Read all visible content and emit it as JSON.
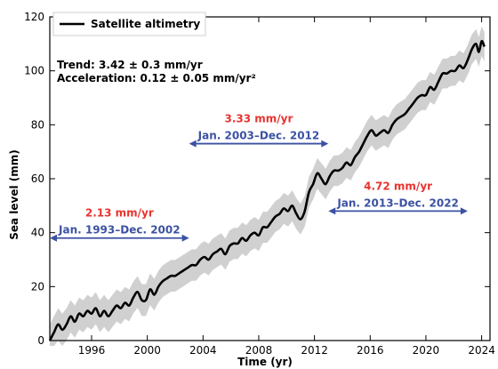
{
  "chart_data": {
    "type": "line",
    "xlabel": "Time (yr)",
    "ylabel": "Sea level (mm)",
    "xlim": [
      1993,
      2024.6
    ],
    "ylim": [
      0,
      120
    ],
    "xticks": [
      1996,
      2000,
      2004,
      2008,
      2012,
      2016,
      2020,
      2024
    ],
    "yticks": [
      0,
      20,
      40,
      60,
      80,
      100,
      120
    ],
    "grid": false,
    "legend": {
      "entries": [
        "Satellite altimetry"
      ],
      "placement": "top-left"
    },
    "series": [
      {
        "name": "Satellite altimetry",
        "x": [
          1993.0,
          1993.3,
          1993.6,
          1993.9,
          1994.2,
          1994.5,
          1994.8,
          1995.1,
          1995.4,
          1995.7,
          1996.0,
          1996.3,
          1996.6,
          1996.9,
          1997.2,
          1997.5,
          1997.8,
          1998.1,
          1998.4,
          1998.7,
          1999.0,
          1999.3,
          1999.6,
          1999.9,
          2000.2,
          2000.5,
          2000.8,
          2001.1,
          2001.4,
          2001.7,
          2002.0,
          2002.3,
          2002.6,
          2002.9,
          2003.2,
          2003.5,
          2003.8,
          2004.1,
          2004.4,
          2004.7,
          2005.0,
          2005.3,
          2005.6,
          2005.9,
          2006.2,
          2006.5,
          2006.8,
          2007.1,
          2007.4,
          2007.7,
          2008.0,
          2008.3,
          2008.6,
          2008.9,
          2009.2,
          2009.5,
          2009.8,
          2010.1,
          2010.4,
          2010.7,
          2011.0,
          2011.3,
          2011.6,
          2011.9,
          2012.2,
          2012.5,
          2012.8,
          2013.1,
          2013.4,
          2013.7,
          2014.0,
          2014.3,
          2014.6,
          2014.9,
          2015.2,
          2015.5,
          2015.8,
          2016.1,
          2016.4,
          2016.7,
          2017.0,
          2017.3,
          2017.6,
          2017.9,
          2018.2,
          2018.5,
          2018.8,
          2019.1,
          2019.4,
          2019.7,
          2020.0,
          2020.3,
          2020.6,
          2020.9,
          2021.2,
          2021.5,
          2021.8,
          2022.1,
          2022.4,
          2022.7,
          2023.0,
          2023.3,
          2023.6,
          2023.8,
          2024.0,
          2024.2
        ],
        "values": [
          0,
          3,
          6,
          4,
          6,
          9,
          7,
          10,
          9,
          11,
          10,
          12,
          9,
          11,
          9,
          11,
          13,
          12,
          14,
          13,
          16,
          18,
          15,
          15,
          19,
          17,
          20,
          22,
          23,
          24,
          24,
          25,
          26,
          27,
          28,
          28,
          30,
          31,
          30,
          32,
          33,
          34,
          32,
          35,
          36,
          36,
          38,
          37,
          39,
          40,
          39,
          42,
          42,
          44,
          46,
          47,
          49,
          48,
          50,
          47,
          45,
          48,
          55,
          58,
          62,
          60,
          58,
          61,
          63,
          63,
          64,
          66,
          65,
          68,
          70,
          73,
          76,
          78,
          76,
          77,
          78,
          77,
          80,
          82,
          83,
          84,
          86,
          88,
          90,
          91,
          91,
          94,
          93,
          96,
          99,
          99,
          100,
          100,
          102,
          101,
          104,
          108,
          110,
          107,
          111,
          109
        ]
      }
    ],
    "uncertainty_band": {
      "name": "uncertainty",
      "color": "#d0d0d0",
      "half_width_start": 6,
      "half_width_end": 5.5
    },
    "annotations": {
      "trend": "Trend: 3.42 ± 0.3 mm/yr",
      "acceleration": "Acceleration: 0.12 ± 0.05 mm/yr²",
      "periods": [
        {
          "rate": "2.13 mm/yr",
          "label": "Jan. 1993–Dec. 2002",
          "x_start": 1993.0,
          "x_end": 2003.0,
          "y_value": 38
        },
        {
          "rate": "3.33 mm/yr",
          "label": "Jan. 2003–Dec. 2012",
          "x_start": 2003.0,
          "x_end": 2013.0,
          "y_value": 73
        },
        {
          "rate": "4.72 mm/yr",
          "label": "Jan. 2013–Dec. 2022",
          "x_start": 2013.0,
          "x_end": 2023.0,
          "y_value": 48
        }
      ]
    },
    "colors": {
      "line": "#000000",
      "band": "#d0d0d0",
      "rate": "#e8332f",
      "period": "#3b52a3",
      "arrow": "#3b52a3"
    }
  }
}
